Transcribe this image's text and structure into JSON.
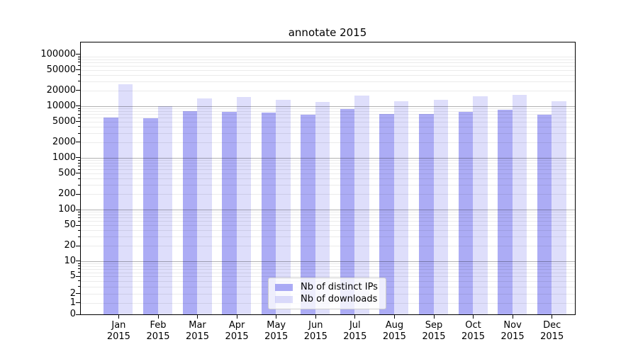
{
  "title": "annotate 2015",
  "chart_data": {
    "type": "bar",
    "title": "annotate 2015",
    "xlabel": "",
    "ylabel": "",
    "yscale": "symlog",
    "grid": true,
    "legend_position": "lower center",
    "ylim": [
      0,
      175000
    ],
    "categories": [
      "Jan 2015",
      "Feb 2015",
      "Mar 2015",
      "Apr 2015",
      "May 2015",
      "Jun 2015",
      "Jul 2015",
      "Aug 2015",
      "Sep 2015",
      "Oct 2015",
      "Nov 2015",
      "Dec 2015"
    ],
    "series": [
      {
        "name": "Nb of distinct IPs",
        "values": [
          6000,
          5800,
          8000,
          7700,
          7500,
          6800,
          8700,
          7000,
          7000,
          7800,
          8500,
          6900
        ]
      },
      {
        "name": "Nb of downloads",
        "values": [
          26000,
          10000,
          14000,
          15000,
          13000,
          12000,
          16000,
          12500,
          13400,
          15400,
          16400,
          12500
        ]
      }
    ],
    "yticks": [
      0,
      1,
      2,
      5,
      10,
      20,
      50,
      100,
      200,
      500,
      1000,
      2000,
      5000,
      10000,
      20000,
      50000,
      100000
    ]
  },
  "legend": {
    "items": [
      {
        "label": "Nb of distinct IPs"
      },
      {
        "label": "Nb of downloads"
      }
    ]
  },
  "colors": {
    "bar_base": "#5a5aeb",
    "series_fill": [
      "rgba(90,90,235,0.5)",
      "rgba(90,90,235,0.2)"
    ],
    "grid_major": "rgba(0,0,0,0.30)",
    "grid_minor": "rgba(0,0,0,0.08)",
    "axis": "#000000",
    "legend_border": "#cccccc"
  }
}
